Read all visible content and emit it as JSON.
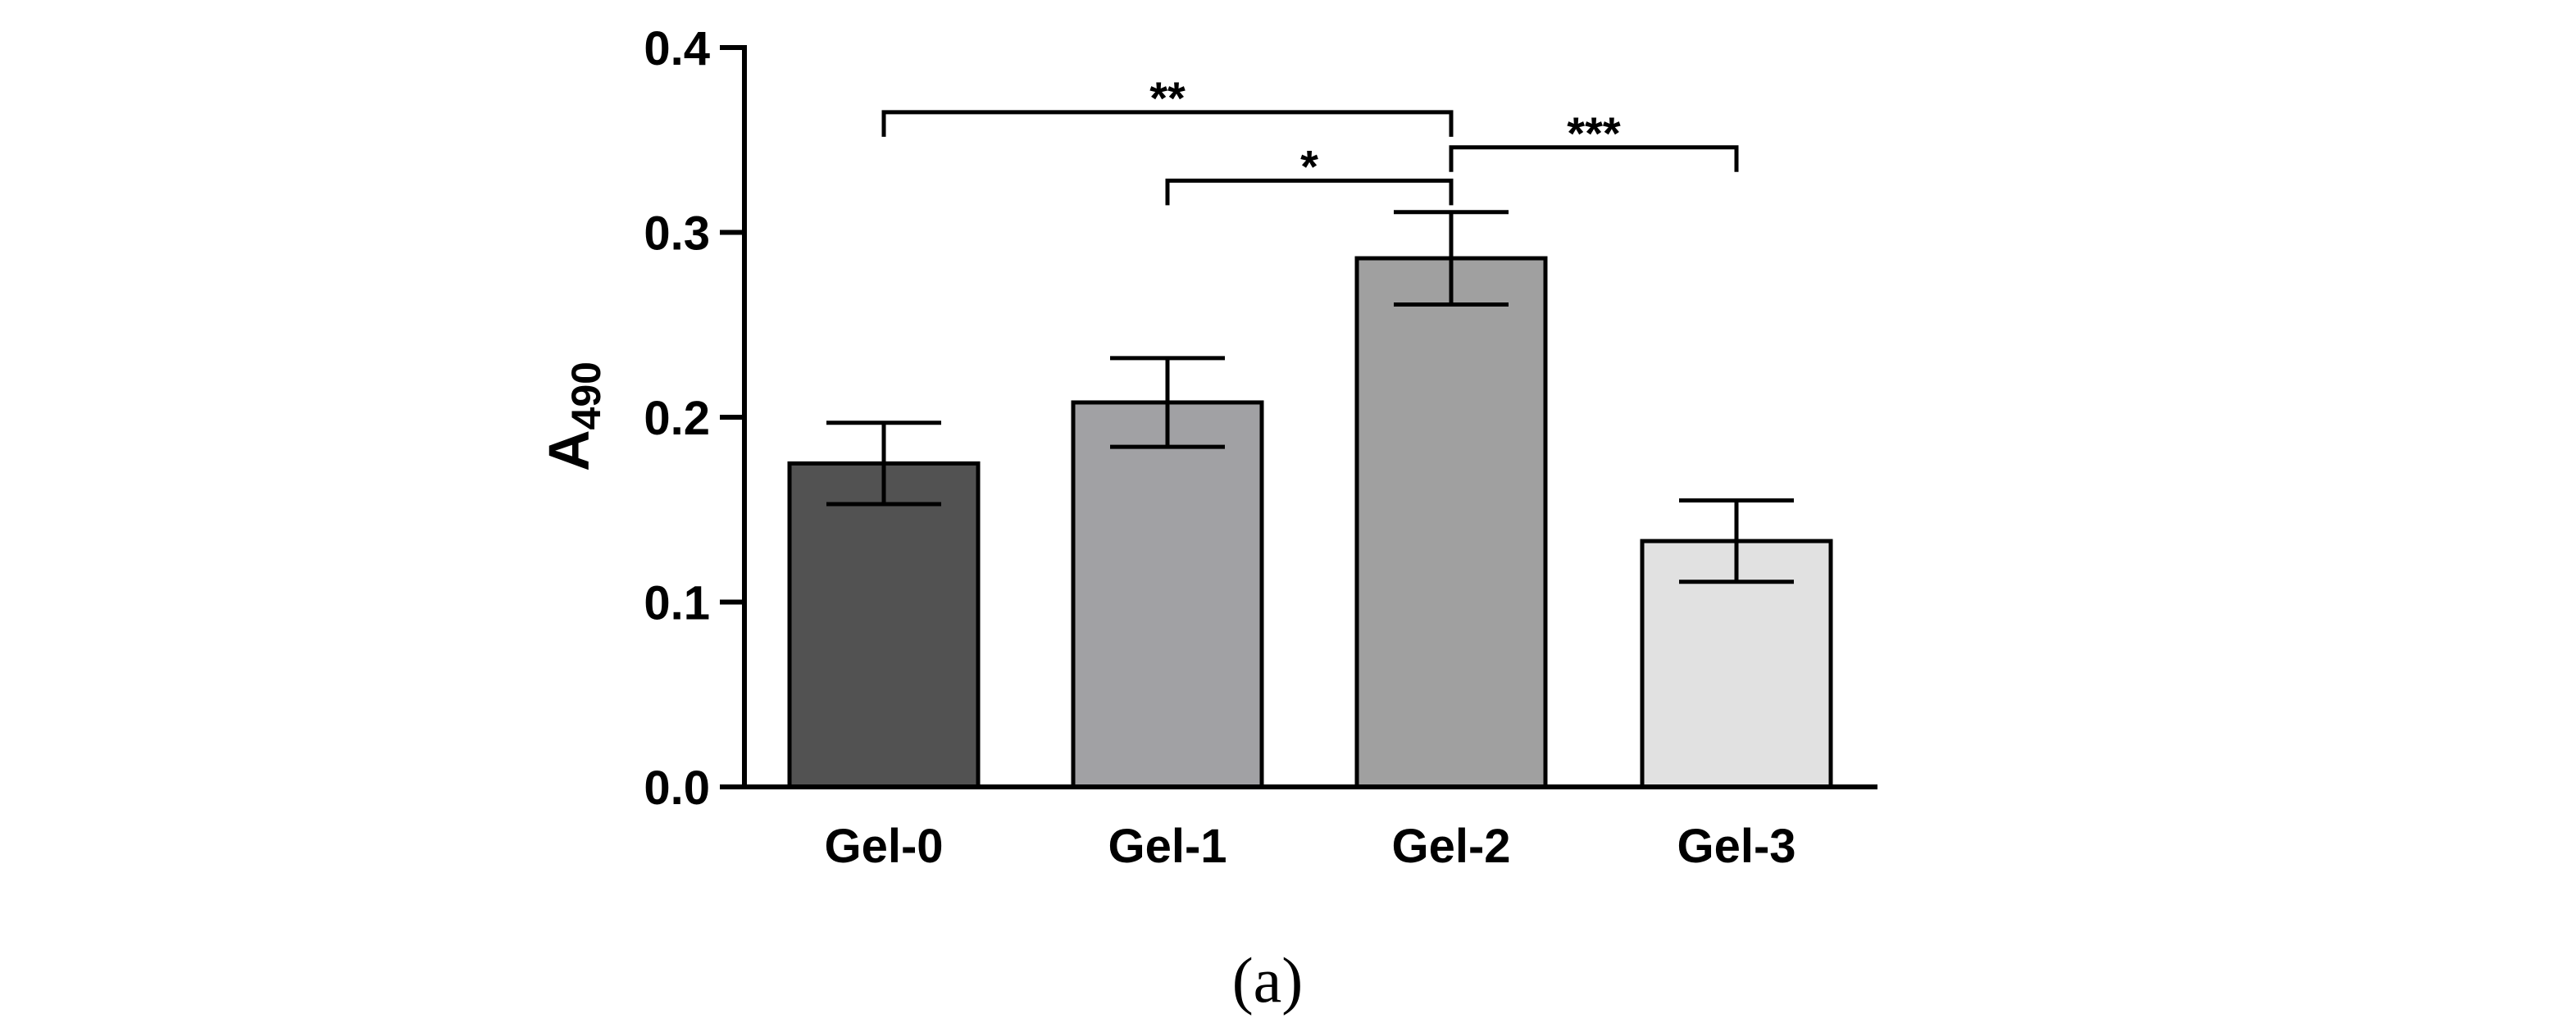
{
  "chart_data": {
    "type": "bar",
    "categories": [
      "Gel-0",
      "Gel-1",
      "Gel-2",
      "Gel-3"
    ],
    "values": [
      0.175,
      0.208,
      0.286,
      0.133
    ],
    "errors": [
      0.022,
      0.024,
      0.025,
      0.022
    ],
    "bar_colors": [
      "#525252",
      "#a1a1a4",
      "#a0a0a0",
      "#e1e1e1"
    ],
    "ylabel_main": "A",
    "ylabel_sub": "490",
    "xlabel": "",
    "ylim": [
      0,
      0.4
    ],
    "yticks": [
      0.0,
      0.1,
      0.2,
      0.3,
      0.4
    ],
    "ytick_labels": [
      "0.0",
      "0.1",
      "0.2",
      "0.3",
      "0.4"
    ],
    "significance": [
      {
        "from": 0,
        "to": 2,
        "label": "**",
        "level": 0.365
      },
      {
        "from": 1,
        "to": 2,
        "label": "*",
        "level": 0.328
      },
      {
        "from": 2,
        "to": 3,
        "label": "***",
        "level": 0.346
      }
    ],
    "panel_label": "(a)"
  }
}
